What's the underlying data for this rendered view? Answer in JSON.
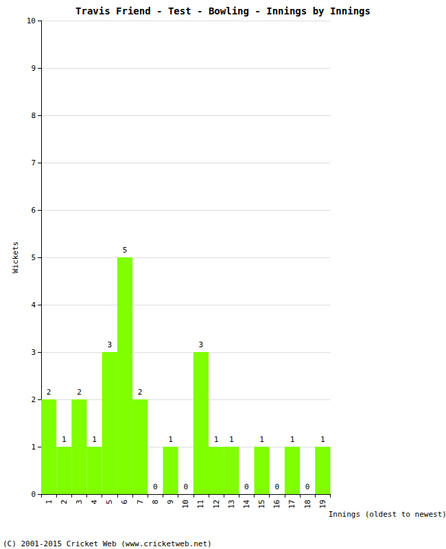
{
  "chart_data": {
    "type": "bar",
    "title": "Travis Friend - Test - Bowling - Innings by Innings",
    "x_label": "Innings (oldest to newest)",
    "y_label": "Wickets",
    "categories": [
      1,
      2,
      3,
      4,
      5,
      6,
      7,
      8,
      9,
      10,
      11,
      12,
      13,
      14,
      15,
      16,
      17,
      18,
      19
    ],
    "values": [
      2,
      1,
      2,
      1,
      3,
      5,
      2,
      0,
      1,
      0,
      3,
      1,
      1,
      0,
      1,
      0,
      1,
      0,
      1
    ],
    "color": "#80ff00",
    "ylim": [
      0,
      10
    ],
    "yticks": [
      0,
      1,
      2,
      3,
      4,
      5,
      6,
      7,
      8,
      9,
      10
    ],
    "grid": true,
    "data_labels": true,
    "annotations": [
      "(C) 2001-2015 Cricket Web (www.cricketweb.net)"
    ]
  }
}
